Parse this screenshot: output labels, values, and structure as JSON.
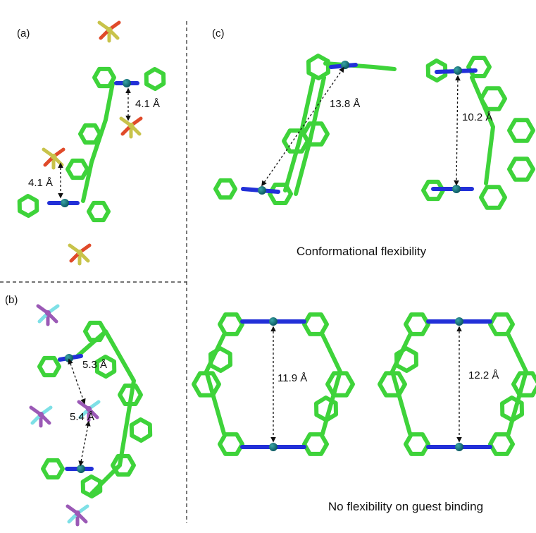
{
  "panels": [
    {
      "label": "(a)",
      "distances": [
        "4.1 Å",
        "4.1 Å"
      ]
    },
    {
      "label": "(b)",
      "distances": [
        "5.3 Å",
        "5.4 Å"
      ]
    },
    {
      "label": "(c)",
      "distances": [
        "13.8 Å",
        "10.2 Å",
        "11.9 Å",
        "12.2 Å"
      ],
      "captions": [
        "Conformational flexibility",
        "No flexibility on guest binding"
      ]
    }
  ]
}
